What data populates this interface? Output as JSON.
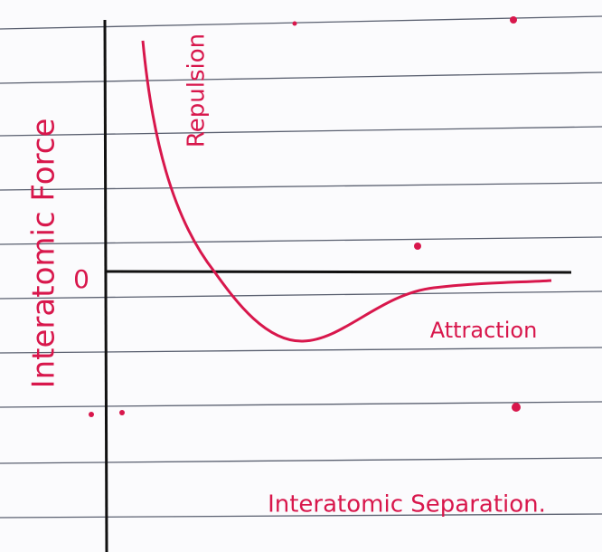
{
  "axes": {
    "y_label": "Interatomic Force",
    "x_label": "Interatomic Separation.",
    "origin": "0"
  },
  "annotations": {
    "repulsion": "Repulsion",
    "attraction": "Attraction"
  }
}
